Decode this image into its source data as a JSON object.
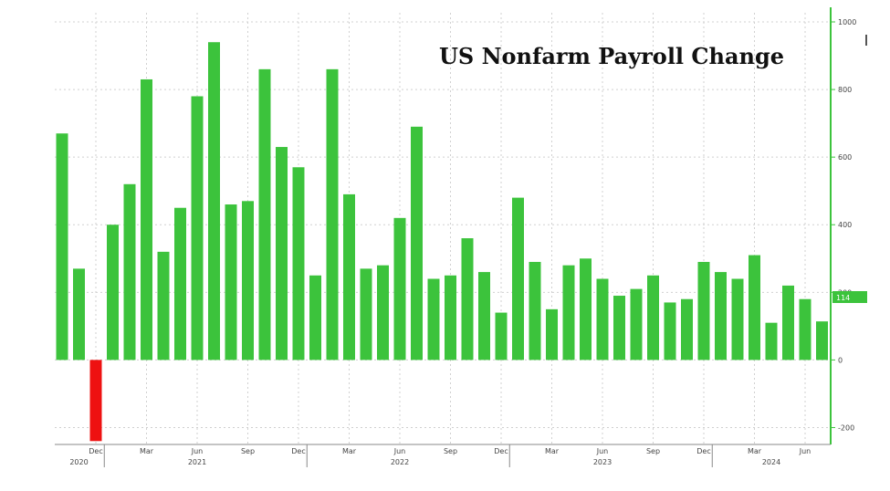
{
  "chart_data": {
    "type": "bar",
    "title": "US Nonfarm Payroll Change",
    "xlabel": "",
    "ylabel": "",
    "ylim": [
      -250,
      1000
    ],
    "y_ticks": [
      1000,
      800,
      600,
      400,
      200,
      0,
      -200
    ],
    "y_tick_labels": [
      "1000",
      "800",
      "600",
      "400",
      "200",
      "0",
      "-200"
    ],
    "grid": true,
    "y_axis_side": "right",
    "colors": {
      "positive": "#3cc33c",
      "negative": "#ee1111",
      "axis": "#3cc33c",
      "grid": "#d0d0d0"
    },
    "categories": [
      "2020-10",
      "2020-11",
      "2020-12",
      "2021-01",
      "2021-02",
      "2021-03",
      "2021-04",
      "2021-05",
      "2021-06",
      "2021-07",
      "2021-08",
      "2021-09",
      "2021-10",
      "2021-11",
      "2021-12",
      "2022-01",
      "2022-02",
      "2022-03",
      "2022-04",
      "2022-05",
      "2022-06",
      "2022-07",
      "2022-08",
      "2022-09",
      "2022-10",
      "2022-11",
      "2022-12",
      "2023-01",
      "2023-02",
      "2023-03",
      "2023-04",
      "2023-05",
      "2023-06",
      "2023-07",
      "2023-08",
      "2023-09",
      "2023-10",
      "2023-11",
      "2023-12",
      "2024-01",
      "2024-02",
      "2024-03",
      "2024-04",
      "2024-05",
      "2024-06",
      "2024-07"
    ],
    "values": [
      670,
      270,
      -240,
      400,
      520,
      830,
      320,
      450,
      780,
      940,
      460,
      470,
      860,
      630,
      570,
      250,
      860,
      490,
      270,
      280,
      420,
      690,
      240,
      250,
      360,
      260,
      140,
      480,
      290,
      150,
      280,
      300,
      240,
      190,
      210,
      250,
      170,
      180,
      290,
      260,
      240,
      310,
      110,
      220,
      180,
      114
    ],
    "last_value_label": "114",
    "x_month_labels": [
      {
        "index": 2,
        "label": "Dec"
      },
      {
        "index": 5,
        "label": "Mar"
      },
      {
        "index": 8,
        "label": "Jun"
      },
      {
        "index": 11,
        "label": "Sep"
      },
      {
        "index": 14,
        "label": "Dec"
      },
      {
        "index": 17,
        "label": "Mar"
      },
      {
        "index": 20,
        "label": "Jun"
      },
      {
        "index": 23,
        "label": "Sep"
      },
      {
        "index": 26,
        "label": "Dec"
      },
      {
        "index": 29,
        "label": "Mar"
      },
      {
        "index": 32,
        "label": "Jun"
      },
      {
        "index": 35,
        "label": "Sep"
      },
      {
        "index": 38,
        "label": "Dec"
      },
      {
        "index": 41,
        "label": "Mar"
      },
      {
        "index": 44,
        "label": "Jun"
      }
    ],
    "x_year_labels": [
      {
        "index": 1,
        "label": "2020"
      },
      {
        "index": 8,
        "label": "2021"
      },
      {
        "index": 20,
        "label": "2022"
      },
      {
        "index": 32,
        "label": "2023"
      },
      {
        "index": 42,
        "label": "2024"
      }
    ]
  }
}
